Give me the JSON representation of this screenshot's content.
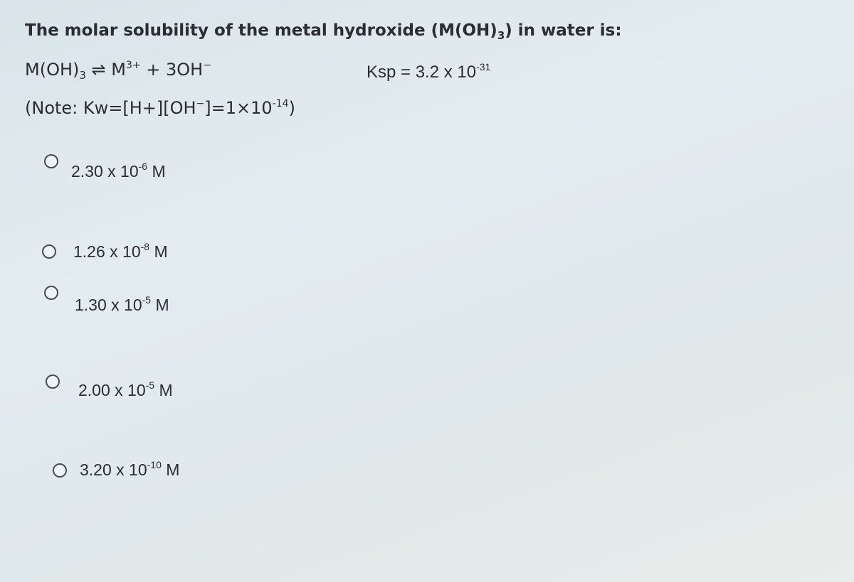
{
  "question": {
    "parts": [
      "The molar solubility of the metal hydroxide (M(OH)",
      "3",
      ") in water is:"
    ]
  },
  "equation": {
    "parts": [
      "M(OH)",
      "3",
      " ⇌ M",
      "3+",
      " + 3OH",
      "−"
    ]
  },
  "ksp": {
    "parts": [
      "Ksp = 3.2 x 10",
      "-31"
    ]
  },
  "note": {
    "parts": [
      "(Note: Kw=[H+][OH",
      "−",
      "]=1×10",
      "-14",
      ")"
    ]
  },
  "options": [
    {
      "mantissa": "2.30 x 10",
      "exponent": "-6",
      "unit": "M"
    },
    {
      "mantissa": "1.26 x 10",
      "exponent": "-8",
      "unit": "M"
    },
    {
      "mantissa": "1.30 x 10",
      "exponent": "-5",
      "unit": "M"
    },
    {
      "mantissa": "2.00 x 10",
      "exponent": "-5",
      "unit": "M"
    },
    {
      "mantissa": "3.20 x 10",
      "exponent": "-10",
      "unit": "M"
    }
  ]
}
